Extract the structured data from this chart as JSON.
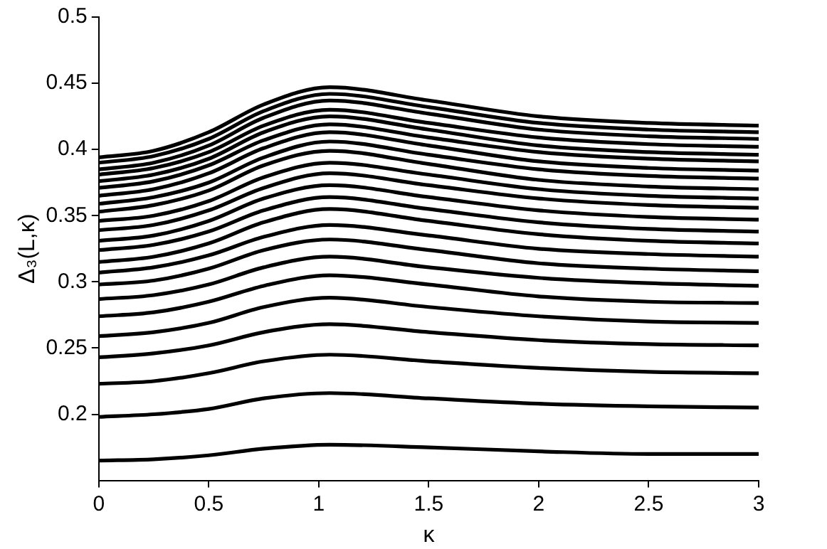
{
  "chart_data": {
    "type": "line",
    "xlabel": "κ",
    "ylabel": "Δ₃(L,κ)",
    "x": [
      0,
      0.25,
      0.5,
      0.75,
      1.05,
      1.5,
      2,
      2.5,
      3
    ],
    "xlim": [
      0,
      3
    ],
    "xticks": [
      0,
      0.5,
      1,
      1.5,
      2,
      2.5,
      3
    ],
    "ylim": [
      0.15,
      0.5
    ],
    "yticks": [
      0.2,
      0.25,
      0.3,
      0.35,
      0.4,
      0.45,
      0.5
    ],
    "grid": false,
    "legend": false,
    "marker": "none",
    "line_style": "solid",
    "series": [
      {
        "color": "#000000",
        "values": [
          0.165,
          0.166,
          0.169,
          0.174,
          0.177,
          0.175,
          0.172,
          0.17,
          0.17
        ]
      },
      {
        "color": "#000000",
        "values": [
          0.198,
          0.2,
          0.204,
          0.212,
          0.216,
          0.212,
          0.208,
          0.206,
          0.205
        ]
      },
      {
        "color": "#000000",
        "values": [
          0.223,
          0.225,
          0.231,
          0.24,
          0.245,
          0.24,
          0.235,
          0.232,
          0.231
        ]
      },
      {
        "color": "#000000",
        "values": [
          0.243,
          0.246,
          0.252,
          0.262,
          0.268,
          0.262,
          0.256,
          0.253,
          0.252
        ]
      },
      {
        "color": "#000000",
        "values": [
          0.259,
          0.262,
          0.269,
          0.281,
          0.288,
          0.281,
          0.274,
          0.27,
          0.269
        ]
      },
      {
        "color": "#000000",
        "values": [
          0.274,
          0.277,
          0.285,
          0.297,
          0.305,
          0.298,
          0.289,
          0.285,
          0.284
        ]
      },
      {
        "color": "#000000",
        "values": [
          0.287,
          0.29,
          0.298,
          0.311,
          0.319,
          0.311,
          0.303,
          0.299,
          0.297
        ]
      },
      {
        "color": "#000000",
        "values": [
          0.298,
          0.301,
          0.31,
          0.324,
          0.332,
          0.324,
          0.314,
          0.31,
          0.308
        ]
      },
      {
        "color": "#000000",
        "values": [
          0.307,
          0.311,
          0.32,
          0.334,
          0.343,
          0.335,
          0.325,
          0.321,
          0.319
        ]
      },
      {
        "color": "#000000",
        "values": [
          0.315,
          0.319,
          0.329,
          0.345,
          0.355,
          0.346,
          0.336,
          0.331,
          0.329
        ]
      },
      {
        "color": "#000000",
        "values": [
          0.324,
          0.328,
          0.338,
          0.354,
          0.364,
          0.355,
          0.345,
          0.34,
          0.338
        ]
      },
      {
        "color": "#000000",
        "values": [
          0.331,
          0.335,
          0.346,
          0.363,
          0.373,
          0.364,
          0.354,
          0.349,
          0.347
        ]
      },
      {
        "color": "#000000",
        "values": [
          0.339,
          0.343,
          0.354,
          0.371,
          0.382,
          0.373,
          0.363,
          0.358,
          0.356
        ]
      },
      {
        "color": "#000000",
        "values": [
          0.346,
          0.35,
          0.361,
          0.379,
          0.39,
          0.381,
          0.37,
          0.365,
          0.363
        ]
      },
      {
        "color": "#000000",
        "values": [
          0.353,
          0.358,
          0.369,
          0.388,
          0.399,
          0.389,
          0.377,
          0.372,
          0.37
        ]
      },
      {
        "color": "#000000",
        "values": [
          0.359,
          0.364,
          0.375,
          0.394,
          0.406,
          0.396,
          0.385,
          0.38,
          0.378
        ]
      },
      {
        "color": "#000000",
        "values": [
          0.365,
          0.37,
          0.382,
          0.401,
          0.413,
          0.403,
          0.391,
          0.386,
          0.384
        ]
      },
      {
        "color": "#000000",
        "values": [
          0.371,
          0.376,
          0.388,
          0.407,
          0.419,
          0.409,
          0.398,
          0.393,
          0.391
        ]
      },
      {
        "color": "#000000",
        "values": [
          0.376,
          0.381,
          0.393,
          0.413,
          0.425,
          0.415,
          0.403,
          0.398,
          0.396
        ]
      },
      {
        "color": "#000000",
        "values": [
          0.381,
          0.386,
          0.398,
          0.418,
          0.43,
          0.42,
          0.409,
          0.404,
          0.402
        ]
      },
      {
        "color": "#000000",
        "values": [
          0.385,
          0.39,
          0.403,
          0.424,
          0.437,
          0.427,
          0.415,
          0.41,
          0.408
        ]
      },
      {
        "color": "#000000",
        "values": [
          0.39,
          0.395,
          0.408,
          0.429,
          0.442,
          0.432,
          0.42,
          0.415,
          0.413
        ]
      },
      {
        "color": "#000000",
        "values": [
          0.394,
          0.399,
          0.413,
          0.434,
          0.447,
          0.437,
          0.425,
          0.42,
          0.418
        ]
      }
    ]
  }
}
